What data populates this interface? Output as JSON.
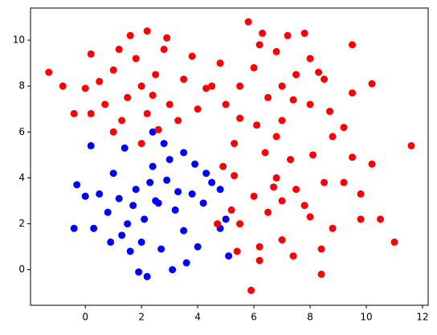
{
  "chart_data": {
    "type": "scatter",
    "xlim": [
      -1.95,
      12.2
    ],
    "ylim": [
      -1.55,
      11.4
    ],
    "xticks": [
      0,
      2,
      4,
      6,
      8,
      10,
      12
    ],
    "yticks": [
      0,
      2,
      4,
      6,
      8,
      10
    ],
    "grid": false,
    "series": [
      {
        "color": "#0000ff",
        "x": [
          2.5,
          1.8,
          3.2,
          2.1,
          2.9,
          1.2,
          3.8,
          2.4,
          1.5,
          3.5,
          0.5,
          4.2,
          2.0,
          3.0,
          0.8,
          4.5,
          1.0,
          2.7,
          3.9,
          -0.3,
          0.0,
          4.8,
          2.2,
          1.9,
          3.6,
          5.1,
          1.4,
          2.8,
          3.5,
          0.3,
          -0.4,
          4.0,
          1.6,
          2.6,
          3.3,
          1.7,
          2.3,
          0.9,
          4.3,
          5.0,
          2.4,
          0.2,
          3.1,
          4.8,
          1.3
        ],
        "y": [
          3,
          3.5,
          2.6,
          2.2,
          3.9,
          3.1,
          3.3,
          4.5,
          2.0,
          1.7,
          3.3,
          2.9,
          1.2,
          4.8,
          2.5,
          3.8,
          4.2,
          0.9,
          4.6,
          3.7,
          3.2,
          1.8,
          -0.3,
          -0.1,
          0.3,
          0.6,
          5.3,
          5.5,
          5.1,
          1.8,
          1.8,
          1.0,
          0.8,
          2.9,
          3.4,
          2.8,
          3.8,
          1.2,
          4.2,
          2.2,
          6.0,
          5.4,
          0.0,
          3.5,
          1.5
        ]
      },
      {
        "color": "#ff0000",
        "x": [
          2,
          1.5,
          2.5,
          1,
          3,
          1.8,
          2.8,
          0.5,
          3.5,
          2.2,
          1.3,
          0,
          -0.4,
          -1.3,
          -0.8,
          0.2,
          2.2,
          2.9,
          3.8,
          4.0,
          1.0,
          2.6,
          0.2,
          3.3,
          1.6,
          2.0,
          4.5,
          0.7,
          2.4,
          1.2,
          7,
          6.5,
          7.5,
          6,
          8,
          6.8,
          7.2,
          5.5,
          8.5,
          7.0,
          6.1,
          8.7,
          5.0,
          4.8,
          5.8,
          6.3,
          7.8,
          9.5,
          9.5,
          10.2,
          8.8,
          5.3,
          6.8,
          9.2,
          8.0,
          7.4,
          6.2,
          4.3,
          5.5,
          8.3,
          7,
          6.5,
          7.5,
          6,
          8,
          6.8,
          7.3,
          5.5,
          8.5,
          7.0,
          6.2,
          8.4,
          5.3,
          5.2,
          6.4,
          8.1,
          9.2,
          9.8,
          10.5,
          11.6,
          11.0,
          10.2,
          5.4,
          6.2,
          5.9,
          7.4,
          8.4,
          4.7,
          9.5,
          7.8,
          6.7,
          8.8,
          4.9,
          9.8
        ],
        "y": [
          8,
          7.5,
          8.5,
          8.7,
          7.2,
          9.2,
          9.6,
          8.2,
          8.3,
          6.8,
          6.5,
          7.9,
          6.8,
          8.6,
          8.0,
          9.4,
          10.4,
          10.1,
          9.3,
          7.0,
          6.0,
          6.1,
          6.8,
          6.5,
          10.2,
          5.5,
          8.0,
          7.2,
          7.6,
          9.6,
          8,
          7.5,
          8.5,
          8.8,
          7.2,
          9.5,
          10.2,
          8.0,
          8.3,
          6.5,
          6.3,
          6.9,
          7.2,
          9.0,
          10.8,
          10.3,
          10.3,
          9.8,
          7.7,
          8.1,
          5.8,
          5.5,
          5.8,
          6.2,
          9.2,
          7.4,
          9.8,
          7.9,
          6.6,
          8.6,
          3,
          2.5,
          3.5,
          3.2,
          2.3,
          4.0,
          4.8,
          2.0,
          3.8,
          1.3,
          1.0,
          0.9,
          4.1,
          2.6,
          5.1,
          5.0,
          3.8,
          2.2,
          2.2,
          5.4,
          1.2,
          4.6,
          0.8,
          0.4,
          -0.9,
          0.6,
          -0.2,
          2.0,
          4.9,
          2.8,
          3.6,
          1.8,
          4.5,
          3.3
        ]
      }
    ]
  }
}
